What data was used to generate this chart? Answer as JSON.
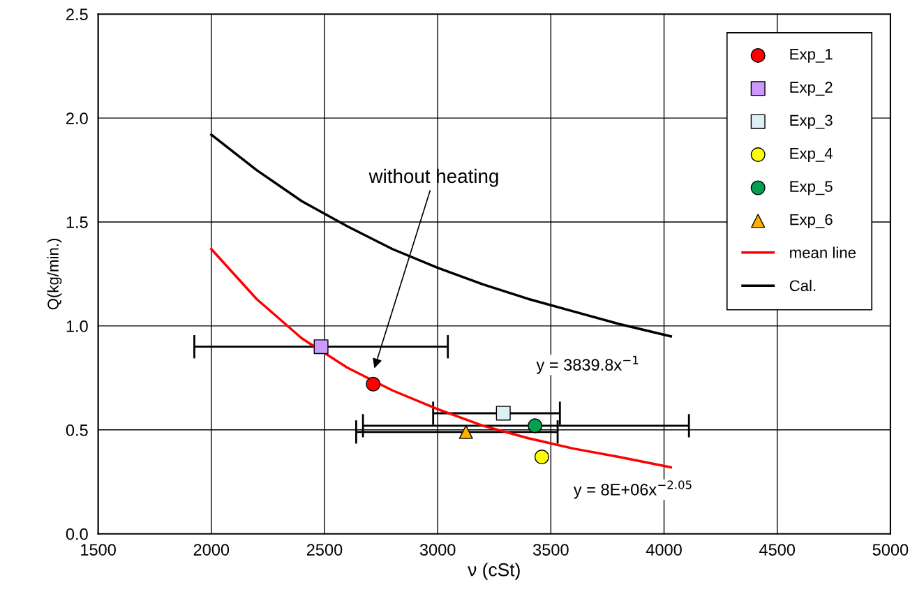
{
  "chart_data": {
    "type": "scatter",
    "xlabel": "ν (cSt)",
    "ylabel": "Q(kg/min.)",
    "xlim": [
      1500,
      5000
    ],
    "ylim": [
      0,
      2.5
    ],
    "xticks": [
      1500,
      2000,
      2500,
      3000,
      3500,
      4000,
      4500,
      5000
    ],
    "yticks": [
      {
        "value": 0,
        "label": "0.0"
      },
      {
        "value": 0.5,
        "label": "0.5"
      },
      {
        "value": 1.0,
        "label": "1.0"
      },
      {
        "value": 1.5,
        "label": "1.5"
      },
      {
        "value": 2.0,
        "label": "2.0"
      },
      {
        "value": 2.5,
        "label": "2.5"
      }
    ],
    "grid": true,
    "legend": "top right",
    "series": [
      {
        "name": "Exp_1",
        "type": "scatter",
        "marker": "circle",
        "color": "#ff0000",
        "x": [
          2715
        ],
        "values": [
          0.72
        ]
      },
      {
        "name": "Exp_2",
        "type": "scatter",
        "marker": "square",
        "color": "#cc99ff",
        "x": [
          2485
        ],
        "values": [
          0.9
        ],
        "xerrors": [
          [
            1925,
            3045
          ]
        ]
      },
      {
        "name": "Exp_3",
        "type": "scatter",
        "marker": "square",
        "color": "#ddeef5",
        "x": [
          3290
        ],
        "values": [
          0.58
        ],
        "xerrors": [
          [
            2980,
            3540
          ]
        ]
      },
      {
        "name": "Exp_4",
        "type": "scatter",
        "marker": "circle",
        "color": "#ffff00",
        "x": [
          3460
        ],
        "values": [
          0.37
        ]
      },
      {
        "name": "Exp_5",
        "type": "scatter",
        "marker": "circle",
        "color": "#00a050",
        "x": [
          3430
        ],
        "values": [
          0.52
        ],
        "xerrors": [
          [
            2670,
            4110
          ]
        ]
      },
      {
        "name": "Exp_6",
        "type": "scatter",
        "marker": "triangle",
        "color": "#ffb000",
        "x": [
          3125
        ],
        "values": [
          0.49
        ],
        "xerrors": [
          [
            2640,
            3530
          ]
        ]
      },
      {
        "name": "mean line",
        "type": "line",
        "marker": "none",
        "color": "#ff0000",
        "x": [
          2000,
          2200,
          2400,
          2600,
          2800,
          3000,
          3200,
          3400,
          3600,
          3800,
          4030
        ],
        "values": [
          1.37,
          1.13,
          0.94,
          0.8,
          0.69,
          0.6,
          0.52,
          0.46,
          0.41,
          0.37,
          0.32
        ]
      },
      {
        "name": "Cal.",
        "type": "line",
        "marker": "none",
        "color": "#000000",
        "x": [
          2000,
          2200,
          2400,
          2600,
          2800,
          3000,
          3200,
          3400,
          3600,
          3800,
          4030
        ],
        "values": [
          1.92,
          1.75,
          1.6,
          1.48,
          1.37,
          1.28,
          1.2,
          1.13,
          1.07,
          1.01,
          0.95
        ]
      }
    ],
    "annotations": [
      "without heating",
      "y = 3839.8x$^{−1}$",
      "y = 8E+06x$^{−2.05}$"
    ]
  }
}
